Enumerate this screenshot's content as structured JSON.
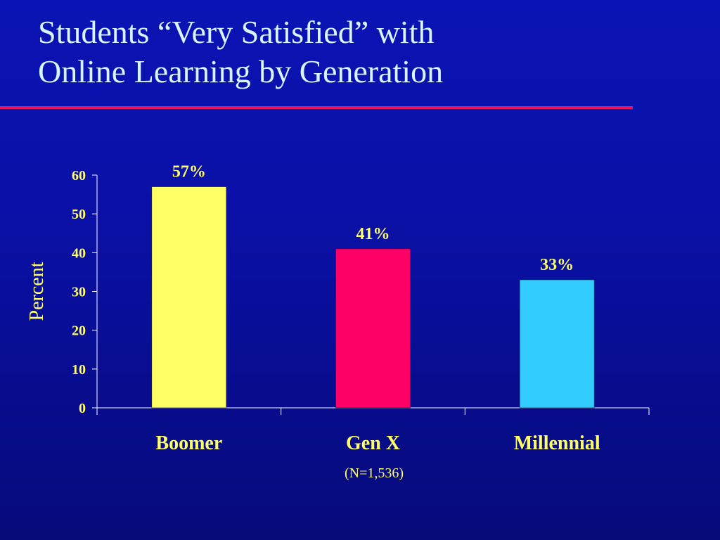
{
  "slide": {
    "title_line1": "Students “Very Satisfied” with",
    "title_line2": "Online Learning by Generation",
    "note": "(N=1,536)"
  },
  "colors": {
    "title": "#d8f4ff",
    "rule": "#e8105a",
    "text": "#ffff66",
    "axis": "#ffffff"
  },
  "chart_data": {
    "type": "bar",
    "categories": [
      "Boomer",
      "Gen X",
      "Millennial"
    ],
    "values": [
      57,
      41,
      33
    ],
    "data_labels": [
      "57%",
      "41%",
      "33%"
    ],
    "bar_colors": [
      "#ffff66",
      "#ff0066",
      "#33ccff"
    ],
    "ylabel": "Percent",
    "ylim": [
      0,
      60
    ],
    "yticks": [
      0,
      10,
      20,
      30,
      40,
      50,
      60
    ],
    "grid": false,
    "legend": "none"
  }
}
